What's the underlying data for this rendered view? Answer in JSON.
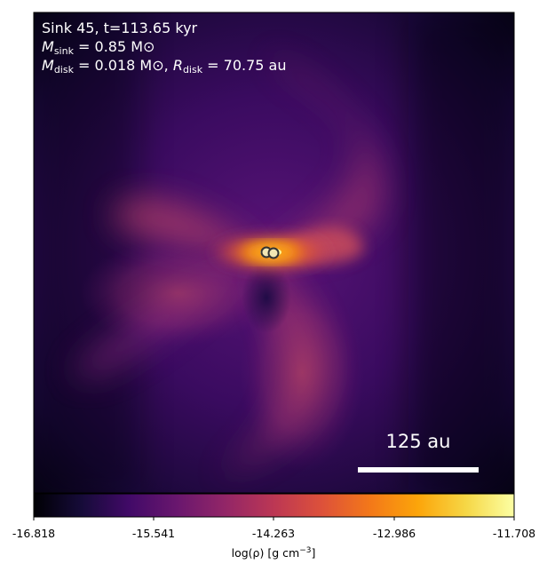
{
  "panel": {
    "line1": "Sink 45, t=113.65 kyr",
    "line2": {
      "m": "M",
      "sub": "sink",
      "rest": " = 0.85 M",
      "sun": "⊙"
    },
    "line3": {
      "m": "M",
      "sub": "disk",
      "rest": " = 0.018 M",
      "sun": "⊙",
      "sep": ", ",
      "r": "R",
      "rsub": "disk",
      "rrest": " = 70.75 au"
    }
  },
  "scalebar": {
    "label": "125 au"
  },
  "colorbar": {
    "ticks": [
      "-16.818",
      "-15.541",
      "-14.263",
      "-12.986",
      "-11.708"
    ],
    "label_main": "log(ρ) [g cm",
    "label_exp": "−3",
    "label_end": "]",
    "colormap": "inferno"
  },
  "colors": {
    "background_dark": "#000004",
    "violet": "#3b0f70",
    "magenta": "#8c2981",
    "orange": "#f57d15",
    "yellow": "#fcffa4"
  },
  "sinks": {
    "count": 2,
    "fill": "#f2e6b3",
    "stroke": "#333333"
  }
}
